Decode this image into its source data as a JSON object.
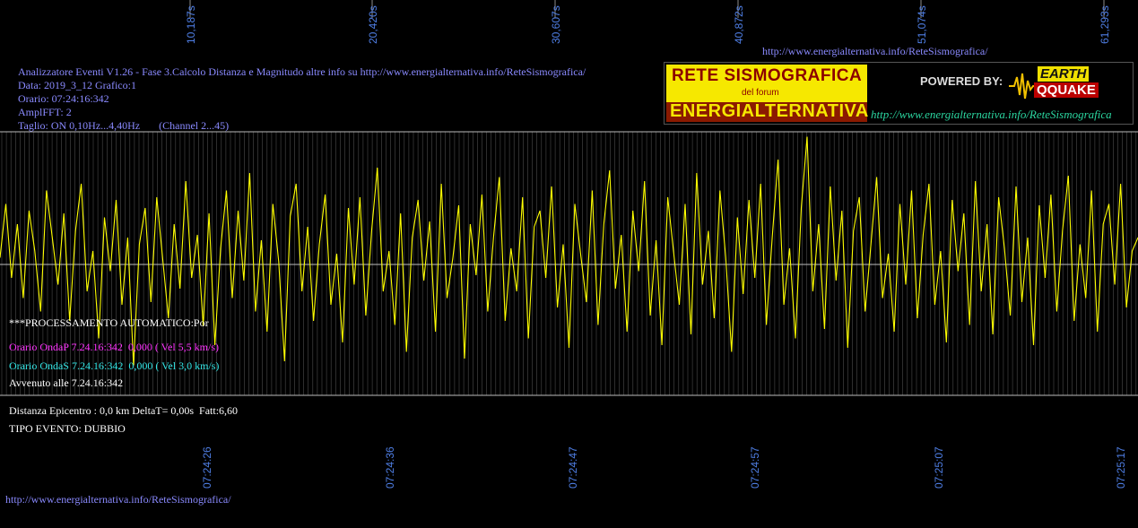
{
  "colors": {
    "background": "#000000",
    "signal": "#ffff00",
    "grid": "#8c8c8c",
    "baseline": "#bfbfbf",
    "axis_label": "#4f7fe6",
    "info_text": "#8a8aff",
    "onda_p": "#ff33ff",
    "onda_s": "#33e6e6",
    "result_text": "#ffffff"
  },
  "header": {
    "url": "http://www.energialternativa.info/ReteSismografica/",
    "info_lines": [
      "Analizzatore Eventi V1.26 - Fase 3.Calcolo Distanza e Magnitudo altre info su http://www.energialternativa.info/ReteSismografica/",
      "Data: 2019_3_12 Grafico:1",
      "Orario: 07:24:16:342",
      "AmplFFT: 2",
      "Taglio: ON 0,10Hz...4,40Hz       (Channel 2...45)"
    ]
  },
  "logo": {
    "line1": "RETE SISMOGRAFICA",
    "line2": "del forum",
    "line3": "ENERGIALTERNATIVA",
    "powered_by": "POWERED BY:",
    "brand_top": "EARTH",
    "brand_bottom": "QQUAKE",
    "url": "http://www.energialternativa.info/ReteSismografica"
  },
  "processing": {
    "title": "***PROCESSAMENTO AUTOMATICO:Por",
    "onda_p": "Orario OndaP 7.24.16:342  0,000 ( Vel 5,5 km/s)",
    "onda_s": "Orario OndaS 7.24.16:342  0,000 ( Vel 3,0 km/s)",
    "avvenuto": "Avvenuto alle 7.24.16:342"
  },
  "result": {
    "distanza": "Distanza Epicentro : 0,0 km DeltaT= 0,00s  Fatt:6,60",
    "tipo": "TIPO EVENTO: DUBBIO"
  },
  "footer": {
    "url": "http://www.energialternativa.info/ReteSismografica/"
  },
  "chart_data": {
    "type": "line",
    "top_axis_labels": [
      "10,187s",
      "20,420s",
      "30,607s",
      "40,872s",
      "51,074s",
      "61,293s"
    ],
    "bottom_axis_labels": [
      "07:24:26",
      "07:24:36",
      "07:24:47",
      "07:24:57",
      "07:25:07",
      "07:25:17"
    ],
    "grid": true,
    "series": [
      {
        "values": [
          0.05,
          0.45,
          -0.1,
          0.3,
          -0.25,
          0.4,
          0.1,
          -0.35,
          0.55,
          0.2,
          -0.15,
          0.38,
          -0.42,
          0.25,
          0.6,
          -0.2,
          0.1,
          -0.55,
          0.35,
          -0.05,
          0.48,
          -0.3,
          0.2,
          -0.75,
          0.15,
          0.42,
          -0.28,
          0.5,
          0.05,
          -0.4,
          0.3,
          -0.18,
          0.62,
          -0.1,
          0.22,
          -0.46,
          0.38,
          -0.6,
          0.12,
          0.55,
          -0.25,
          0.4,
          -0.12,
          0.68,
          -0.35,
          0.18,
          -0.5,
          0.45,
          0.02,
          -0.72,
          0.36,
          0.6,
          -0.2,
          0.28,
          -0.42,
          0.15,
          0.52,
          -0.3,
          0.08,
          -0.58,
          0.42,
          -0.15,
          0.5,
          -0.38,
          0.25,
          0.72,
          -0.2,
          0.1,
          -0.45,
          0.38,
          -0.65,
          0.2,
          0.48,
          -0.12,
          0.32,
          -0.5,
          0.6,
          -0.25,
          0.05,
          0.44,
          -0.7,
          0.3,
          -0.08,
          0.52,
          -0.35,
          0.2,
          0.65,
          -0.42,
          0.12,
          -0.2,
          0.5,
          -0.55,
          0.28,
          0.4,
          -0.1,
          0.58,
          -0.32,
          0.15,
          -0.62,
          0.45,
          0.08,
          -0.28,
          0.55,
          -0.45,
          0.3,
          0.7,
          -0.18,
          0.22,
          -0.5,
          0.4,
          -0.05,
          0.62,
          -0.38,
          0.18,
          -0.6,
          0.5,
          0.1,
          -0.3,
          0.45,
          -0.52,
          0.68,
          -0.15,
          0.25,
          -0.4,
          0.55,
          0.05,
          -0.65,
          0.35,
          -0.22,
          0.48,
          -0.1,
          0.6,
          -0.45,
          0.2,
          0.78,
          -0.3,
          0.12,
          -0.55,
          0.42,
          0.95,
          -0.2,
          0.3,
          -0.48,
          0.58,
          -0.12,
          0.4,
          -0.62,
          0.25,
          0.5,
          -0.35,
          0.15,
          0.65,
          -0.25,
          0.08,
          -0.5,
          0.45,
          -0.15,
          0.55,
          -0.4,
          0.22,
          0.6,
          -0.3,
          0.1,
          -0.58,
          0.48,
          -0.05,
          0.38,
          -0.45,
          0.62,
          -0.2,
          0.3,
          -0.52,
          0.5,
          0.12,
          -0.38,
          0.58,
          -0.28,
          0.2,
          -0.6,
          0.44,
          -0.1,
          0.52,
          -0.35,
          0.25,
          0.66,
          -0.42,
          0.15,
          -0.25,
          0.55,
          -0.5,
          0.3,
          0.45,
          -0.15,
          0.6,
          -0.32,
          0.1,
          0.2
        ]
      }
    ]
  }
}
